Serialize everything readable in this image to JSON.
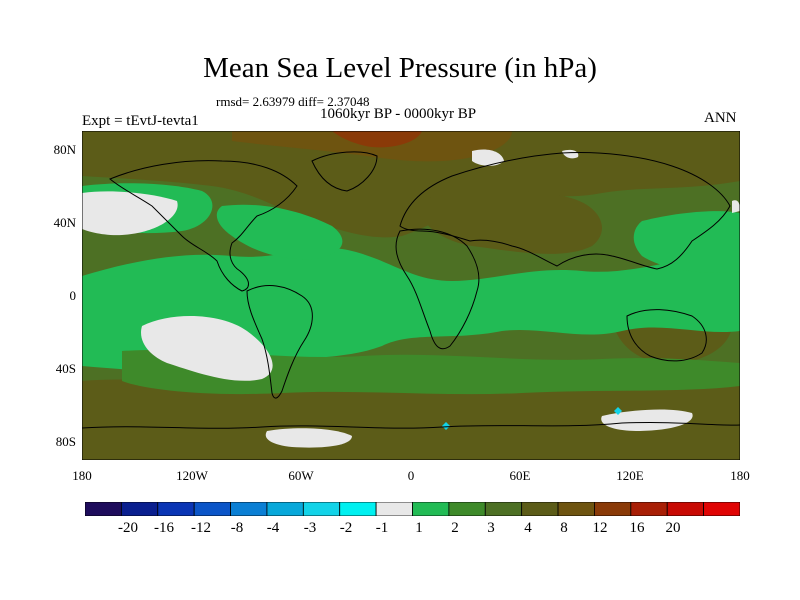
{
  "title": "Mean Sea Level Pressure (in hPa)",
  "stats": "rmsd= 2.63979 diff= 2.37048",
  "period": "1060kyr BP - 0000kyr BP",
  "experiment": "Expt = tEvtJ-tevta1",
  "season": "ANN",
  "lat_labels": [
    "80N",
    "40N",
    "0",
    "40S",
    "80S"
  ],
  "lon_labels": [
    "180",
    "120W",
    "60W",
    "0",
    "60E",
    "120E",
    "180"
  ],
  "colorbar": {
    "colors": [
      "#1e0c5c",
      "#0a1f8f",
      "#0a35b5",
      "#0b55c8",
      "#0b7fd4",
      "#08a8da",
      "#12d3e8",
      "#00f0f0",
      "#e8e8e8",
      "#22bb55",
      "#3e8a2a",
      "#4d7024",
      "#5c5c18",
      "#6e5410",
      "#8a3a08",
      "#a81f06",
      "#c80a04",
      "#e00404"
    ],
    "labels": [
      "-20",
      "-16",
      "-12",
      "-8",
      "-4",
      "-3",
      "-2",
      "-1",
      "1",
      "2",
      "3",
      "4",
      "8",
      "12",
      "16",
      "20"
    ]
  },
  "field_colors": {
    "base": "#4d7024",
    "light_green": "#22bb55",
    "mid_green": "#3e8a2a",
    "brown": "#5c5c18",
    "dark_brown": "#6e5410",
    "rust": "#8a3a08",
    "near_zero": "#e8e8e8",
    "negative": "#12d3e8"
  }
}
